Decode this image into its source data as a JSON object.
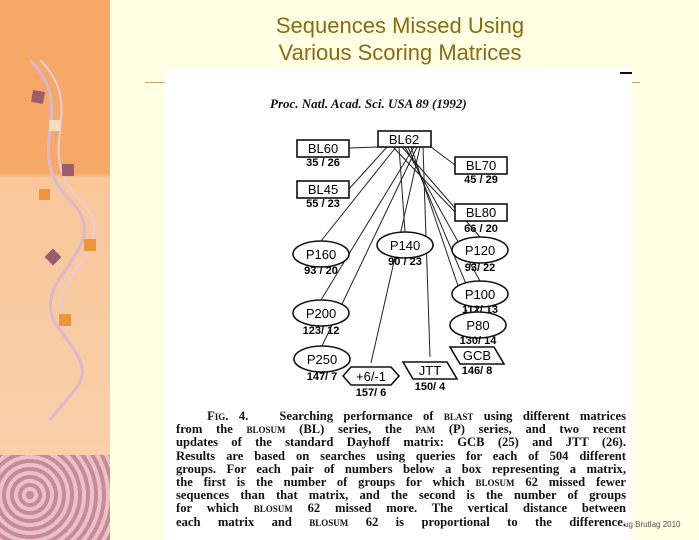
{
  "slide": {
    "title_line1": "Sequences Missed Using",
    "title_line2": "Various Scoring Matrices",
    "credit": "ug Brutlag 2010"
  },
  "figure": {
    "journal": "Proc. Natl. Acad. Sci. USA 89 (1992)",
    "root": "BL62",
    "nodes": [
      {
        "label": "BL60",
        "counts": "35 / 26",
        "shape": "box"
      },
      {
        "label": "BL45",
        "counts": "55 / 23",
        "shape": "box"
      },
      {
        "label": "BL70",
        "counts": "45 / 29",
        "shape": "box"
      },
      {
        "label": "BL80",
        "counts": "66 / 20",
        "shape": "box"
      },
      {
        "label": "P160",
        "counts": "93 / 20",
        "shape": "ellipse"
      },
      {
        "label": "P140",
        "counts": "90 / 23",
        "shape": "ellipse"
      },
      {
        "label": "P120",
        "counts": "93/ 22",
        "shape": "ellipse"
      },
      {
        "label": "P100",
        "counts": "112/ 13",
        "shape": "ellipse"
      },
      {
        "label": "P80",
        "counts": "130/ 14",
        "shape": "ellipse"
      },
      {
        "label": "GCB",
        "counts": "146/ 8",
        "shape": "parallelogram"
      },
      {
        "label": "P200",
        "counts": "123/ 12",
        "shape": "ellipse"
      },
      {
        "label": "P250",
        "counts": "147/ 7",
        "shape": "ellipse"
      },
      {
        "label": "+6/-1",
        "counts": "157/ 6",
        "shape": "hexagon"
      },
      {
        "label": "JTT",
        "counts": "150/ 4",
        "shape": "parallelogram"
      }
    ],
    "caption": {
      "fig": "Fig. 4.",
      "lines": [
        "Searching performance of blast using different matrices",
        "from the blosum (BL) series, the pam (P) series, and two recent",
        "updates of the standard Dayhoff matrix: GCB (25) and JTT (26).",
        "Results are based on searches using queries for each of 504 different",
        "groups. For each pair of numbers below a box representing a matrix,",
        "the first is the number of groups for which blosum 62 missed fewer",
        "sequences than that matrix, and the second is the number of groups",
        "for which blosum 62 missed more. The vertical distance between",
        "each matrix and blosum 62 is proportional to the difference."
      ]
    }
  },
  "colors": {
    "title": "#8C6A12",
    "background": "#FFFFE3",
    "panel": "#F6A867"
  }
}
